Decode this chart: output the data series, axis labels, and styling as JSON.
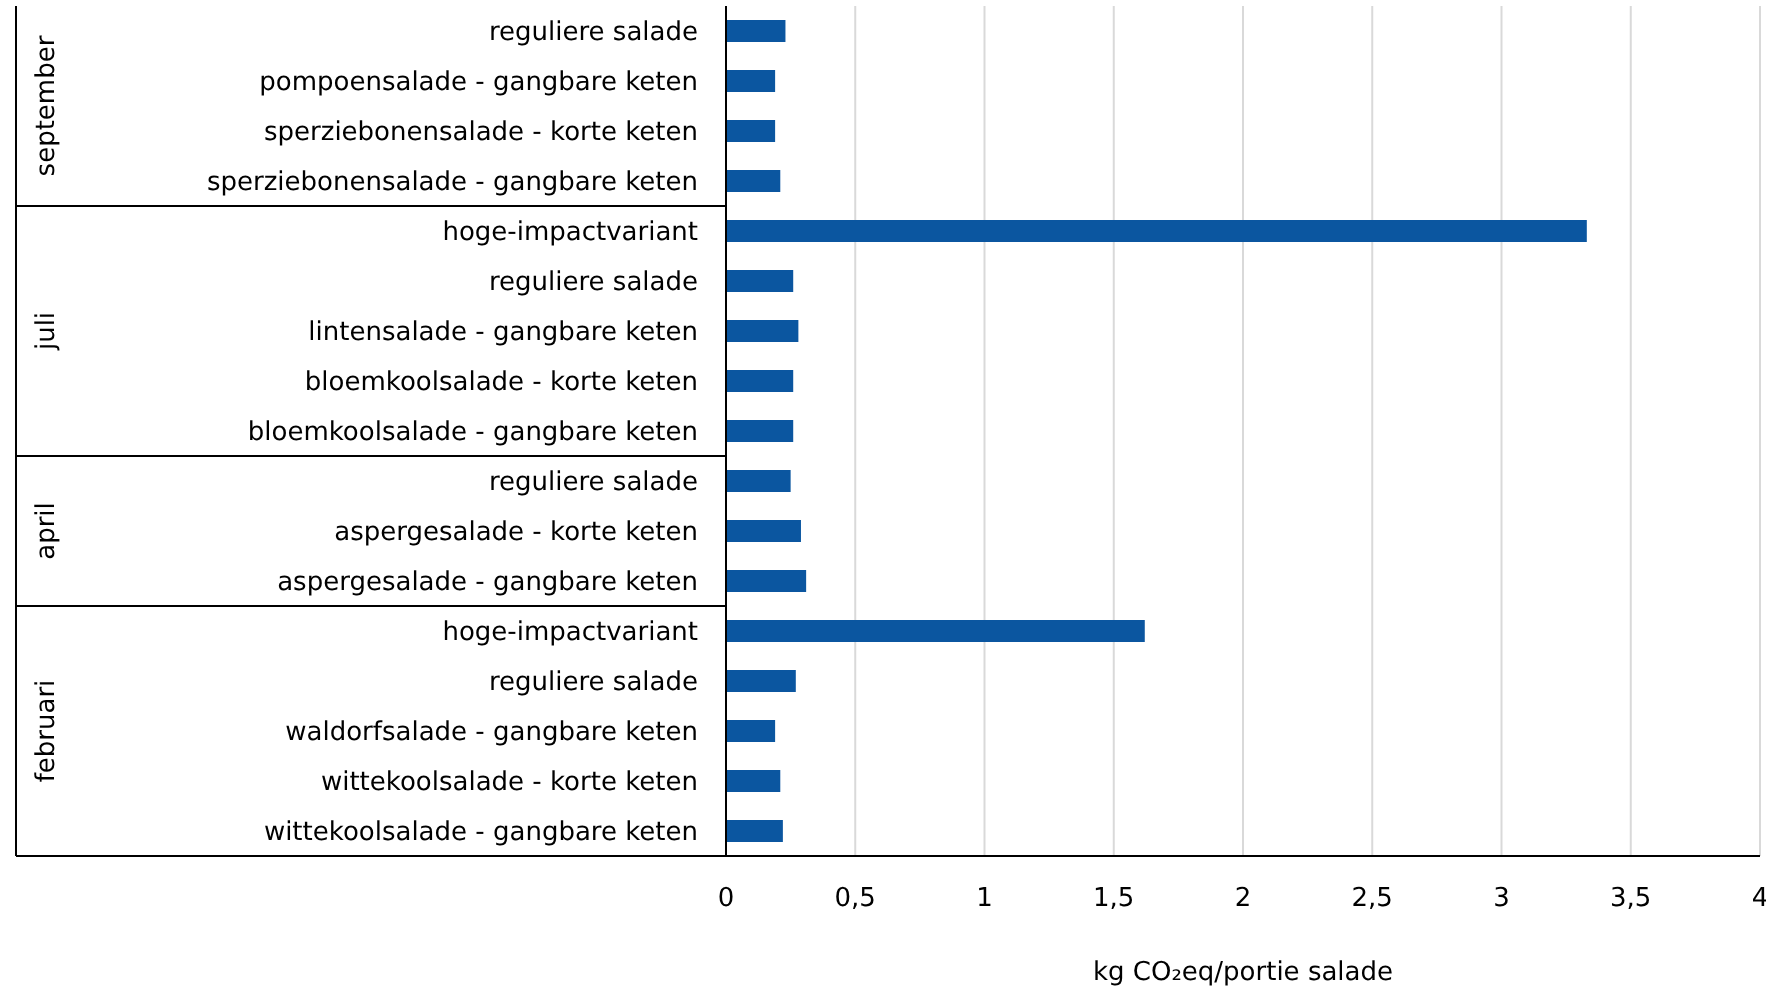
{
  "chart_data": [
    {
      "type": "bar",
      "orientation": "horizontal",
      "ylabel": "september",
      "categories": [
        "reguliere salade",
        "pompoensalade - gangbare keten",
        "sperziebonensalade - korte keten",
        "sperziebonensalade - gangbare keten"
      ],
      "values": [
        0.23,
        0.19,
        0.19,
        0.21
      ],
      "color": "#0b56a0",
      "xlim": [
        0,
        4
      ],
      "xticks": [
        0,
        0.5,
        1,
        1.5,
        2,
        2.5,
        3,
        3.5,
        4
      ],
      "grid": "x",
      "tick_labels": "y"
    },
    {
      "type": "bar",
      "orientation": "horizontal",
      "ylabel": "juli",
      "categories": [
        "hoge-impactvariant",
        "reguliere salade",
        "lintensalade - gangbare keten",
        "bloemkoolsalade - korte keten",
        "bloemkoolsalade - gangbare keten"
      ],
      "values": [
        3.33,
        0.26,
        0.28,
        0.26,
        0.26
      ],
      "color": "#0b56a0",
      "xlim": [
        0,
        4
      ],
      "xticks": [
        0,
        0.5,
        1,
        1.5,
        2,
        2.5,
        3,
        3.5,
        4
      ],
      "grid": "x",
      "tick_labels": "y"
    },
    {
      "type": "bar",
      "orientation": "horizontal",
      "ylabel": "april",
      "categories": [
        "reguliere salade",
        "aspergesalade - korte keten",
        "aspergesalade - gangbare keten"
      ],
      "values": [
        0.25,
        0.29,
        0.31
      ],
      "color": "#0b56a0",
      "xlim": [
        0,
        4
      ],
      "xticks": [
        0,
        0.5,
        1,
        1.5,
        2,
        2.5,
        3,
        3.5,
        4
      ],
      "grid": "x",
      "tick_labels": "y"
    },
    {
      "type": "bar",
      "orientation": "horizontal",
      "ylabel": "februari",
      "xlabel": "kg CO₂eq/portie salade",
      "categories": [
        "hoge-impactvariant",
        "reguliere salade",
        "waldorfsalade - gangbare keten",
        "wittekoolsalade - korte keten",
        "wittekoolsalade - gangbare keten"
      ],
      "values": [
        1.62,
        0.27,
        0.19,
        0.21,
        0.22
      ],
      "color": "#0b56a0",
      "xlim": [
        0,
        4
      ],
      "xticks": [
        0,
        {
          "value": 0.5,
          "label": "0,5"
        },
        1,
        {
          "value": 1.5,
          "label": "1,5"
        },
        2,
        {
          "value": 2.5,
          "label": "2,5"
        },
        3,
        {
          "value": 3.5,
          "label": "3,5"
        },
        4
      ],
      "grid": "x"
    }
  ]
}
